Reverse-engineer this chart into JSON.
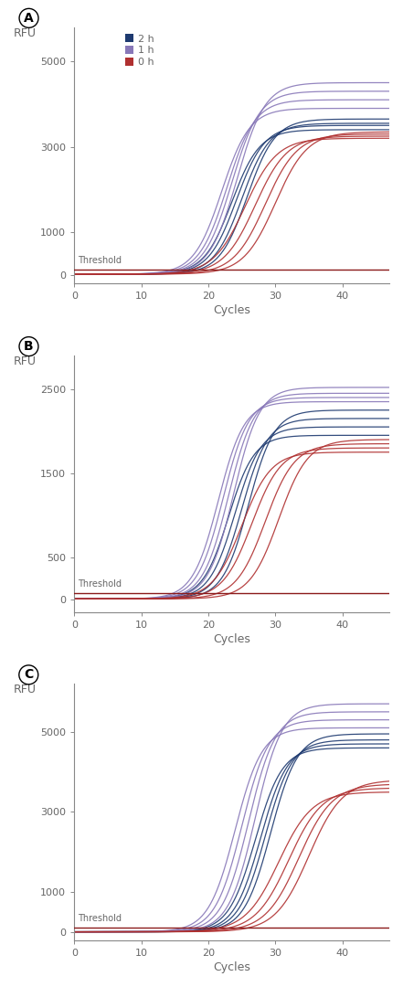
{
  "panels": [
    {
      "label": "A",
      "ylabel": "RFU",
      "xlabel": "Cycles",
      "yticks": [
        0,
        1000,
        3000,
        5000
      ],
      "ylim": [
        -200,
        5800
      ],
      "xlim": [
        0,
        47
      ],
      "xticks": [
        0,
        10,
        20,
        30,
        40
      ],
      "threshold": 120,
      "threshold_color": "#8B1A1A",
      "show_legend": true,
      "curves": {
        "blue": {
          "color": "#1e3a70",
          "midpoints": [
            23.5,
            24.2,
            25.0,
            25.8
          ],
          "plateaus": [
            3400,
            3500,
            3550,
            3650
          ],
          "steepness": [
            0.48,
            0.48,
            0.48,
            0.48
          ],
          "baselines": [
            20,
            20,
            20,
            20
          ]
        },
        "purple": {
          "color": "#8878b8",
          "midpoints": [
            22.0,
            22.8,
            23.5,
            24.3
          ],
          "plateaus": [
            3900,
            4100,
            4300,
            4500
          ],
          "steepness": [
            0.48,
            0.48,
            0.48,
            0.48
          ],
          "baselines": [
            20,
            20,
            20,
            20
          ]
        },
        "red": {
          "color": "#b03030",
          "midpoints": [
            25.5,
            27.0,
            28.5,
            30.0
          ],
          "plateaus": [
            3200,
            3250,
            3300,
            3350
          ],
          "steepness": [
            0.42,
            0.42,
            0.42,
            0.42
          ],
          "baselines": [
            20,
            20,
            20,
            20
          ]
        }
      }
    },
    {
      "label": "B",
      "ylabel": "RFU",
      "xlabel": "Cycles",
      "yticks": [
        0,
        500,
        1500,
        2500
      ],
      "ylim": [
        -150,
        2900
      ],
      "xlim": [
        0,
        47
      ],
      "xticks": [
        0,
        10,
        20,
        30,
        40
      ],
      "threshold": 75,
      "threshold_color": "#8B1A1A",
      "show_legend": false,
      "curves": {
        "blue": {
          "color": "#1e3a70",
          "midpoints": [
            23.0,
            24.0,
            25.0,
            26.0
          ],
          "plateaus": [
            1950,
            2050,
            2150,
            2250
          ],
          "steepness": [
            0.52,
            0.52,
            0.52,
            0.52
          ],
          "baselines": [
            5,
            5,
            5,
            5
          ]
        },
        "purple": {
          "color": "#8878b8",
          "midpoints": [
            21.5,
            22.2,
            23.0,
            23.8
          ],
          "plateaus": [
            2350,
            2400,
            2450,
            2520
          ],
          "steepness": [
            0.52,
            0.52,
            0.52,
            0.52
          ],
          "baselines": [
            5,
            5,
            5,
            5
          ]
        },
        "red": {
          "color": "#b03030",
          "midpoints": [
            25.0,
            26.5,
            28.5,
            30.5
          ],
          "plateaus": [
            1750,
            1800,
            1850,
            1900
          ],
          "steepness": [
            0.46,
            0.46,
            0.46,
            0.46
          ],
          "baselines": [
            5,
            5,
            5,
            5
          ]
        }
      }
    },
    {
      "label": "C",
      "ylabel": "RFU",
      "xlabel": "Cycles",
      "yticks": [
        0,
        1000,
        3000,
        5000
      ],
      "ylim": [
        -200,
        6200
      ],
      "xlim": [
        0,
        47
      ],
      "xticks": [
        0,
        10,
        20,
        30,
        40
      ],
      "threshold": 120,
      "threshold_color": "#8B1A1A",
      "show_legend": false,
      "curves": {
        "blue": {
          "color": "#1e3a70",
          "midpoints": [
            27.0,
            27.8,
            28.5,
            29.3
          ],
          "plateaus": [
            4600,
            4700,
            4800,
            4950
          ],
          "steepness": [
            0.5,
            0.5,
            0.5,
            0.5
          ],
          "baselines": [
            10,
            10,
            10,
            10
          ]
        },
        "purple": {
          "color": "#8878b8",
          "midpoints": [
            24.0,
            25.0,
            26.0,
            27.0
          ],
          "plateaus": [
            5100,
            5300,
            5500,
            5700
          ],
          "steepness": [
            0.5,
            0.5,
            0.5,
            0.5
          ],
          "baselines": [
            10,
            10,
            10,
            10
          ]
        },
        "red": {
          "color": "#b03030",
          "midpoints": [
            30.5,
            32.0,
            33.5,
            35.0
          ],
          "plateaus": [
            3500,
            3600,
            3700,
            3800
          ],
          "steepness": [
            0.4,
            0.4,
            0.4,
            0.4
          ],
          "baselines": [
            10,
            10,
            10,
            10
          ]
        }
      }
    }
  ],
  "legend_labels": [
    "2 h",
    "1 h",
    "0 h"
  ],
  "legend_colors": [
    "#1e3a70",
    "#8878b8",
    "#b03030"
  ],
  "background_color": "#ffffff",
  "axis_color": "#888888",
  "text_color": "#666666",
  "threshold_label": "Threshold"
}
